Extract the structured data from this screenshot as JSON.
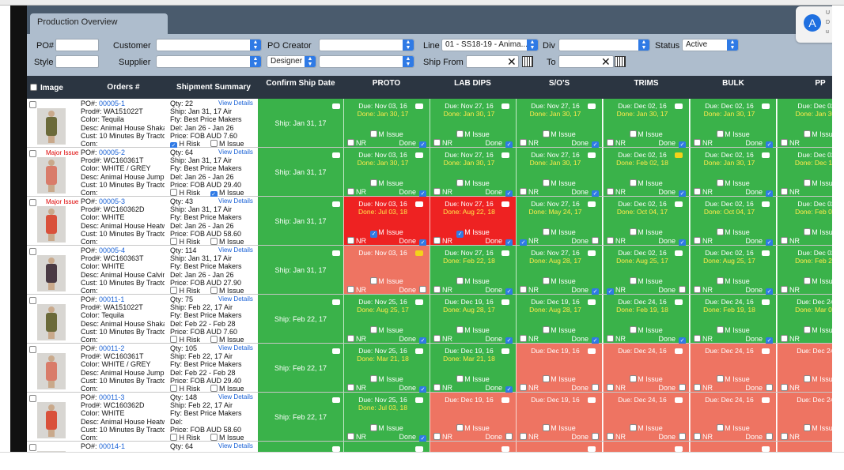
{
  "tab": {
    "label": "Production Overview"
  },
  "filters": {
    "po_label": "PO#",
    "customer_label": "Customer",
    "po_creator_label": "PO Creator",
    "line_label": "Line",
    "line_value": "01 - SS18-19 - Anima...",
    "div_label": "Div",
    "status_label": "Status",
    "status_value": "Active",
    "style_label": "Style",
    "supplier_label": "Supplier",
    "role_value": "Designer",
    "ship_from_label": "Ship From",
    "to_label": "To"
  },
  "app_icon": {
    "line1": "U",
    "line2": "D",
    "line3": "u"
  },
  "header": {
    "image": "Image",
    "orders": "Orders #",
    "shipment": "Shipment Summary",
    "confirm": "Confirm Ship Date",
    "proto": "PROTO",
    "lab_dips": "LAB DIPS",
    "sos": "S/O'S",
    "trims": "TRIMS",
    "bulk": "BULK",
    "pp": "PP"
  },
  "labels": {
    "view_details": "View Details",
    "h_risk": "H Risk",
    "m_issue": "M Issue",
    "nr": "NR",
    "done": "Done",
    "com": "Com:",
    "major_issue": "Major Issue"
  },
  "rows": [
    {
      "po": "PO#: ",
      "po_link": "00005-1",
      "prod": "Prod#: WA151022T",
      "color": "Color: Tequila",
      "desc": "Desc: Animal House Shaka",
      "cust": "Cust: 10 Minutes By Tracto",
      "com": "Com:",
      "qty": "Qty: 22",
      "ship": "Ship: Jan 31, 17 Air",
      "fty": "Fty: Best Price Makers",
      "del": "Del: Jan 26 - Jan 26",
      "price": "Price: FOB AUD 7.60",
      "h_risk": true,
      "m_issue": false,
      "major": false,
      "figure": "#6b6a3a",
      "confirm": "Ship: Jan 31, 17",
      "cells": [
        {
          "c": "g",
          "due": "Due: Nov 03, 16",
          "done": "Done: Jan 30, 17",
          "mi": false,
          "nr": false,
          "dn": true,
          "bubble": "w"
        },
        {
          "c": "g",
          "due": "Due: Nov 27, 16",
          "done": "Done: Jan 30, 17",
          "mi": false,
          "nr": false,
          "dn": true,
          "bubble": "w"
        },
        {
          "c": "g",
          "due": "Due: Nov 27, 16",
          "done": "Done: Jan 30, 17",
          "mi": false,
          "nr": false,
          "dn": true,
          "bubble": "w"
        },
        {
          "c": "g",
          "due": "Due: Dec 02, 16",
          "done": "Done: Jan 30, 17",
          "mi": false,
          "nr": false,
          "dn": true,
          "bubble": "w"
        },
        {
          "c": "g",
          "due": "Due: Dec 02, 16",
          "done": "Done: Jan 30, 17",
          "mi": false,
          "nr": false,
          "dn": true,
          "bubble": "w"
        },
        {
          "c": "g",
          "due": "Due: Dec 02",
          "done": "Done: Jan 30,",
          "mi": false,
          "nr": false,
          "dn": false,
          "bubble": "w"
        }
      ]
    },
    {
      "po": "PO#: ",
      "po_link": "00005-2",
      "prod": "Prod#: WC160361T",
      "color": "Color: WHITE / GREY",
      "desc": "Desc: Animal House Jump S",
      "cust": "Cust: 10 Minutes By Tracto",
      "com": "Com:",
      "qty": "Qty: 64",
      "ship": "Ship: Jan 31, 17 Air",
      "fty": "Fty: Best Price Makers",
      "del": "Del: Jan 26 - Jan 26",
      "price": "Price: FOB AUD 29.40",
      "h_risk": false,
      "m_issue": true,
      "major": true,
      "figure": "#d97c6a",
      "confirm": "Ship: Jan 31, 17",
      "cells": [
        {
          "c": "g",
          "due": "Due: Nov 03, 16",
          "done": "Done: Jan 30, 17",
          "mi": false,
          "nr": false,
          "dn": true,
          "bubble": "w"
        },
        {
          "c": "g",
          "due": "Due: Nov 27, 16",
          "done": "Done: Jan 30, 17",
          "mi": false,
          "nr": false,
          "dn": true,
          "bubble": "w"
        },
        {
          "c": "g",
          "due": "Due: Nov 27, 16",
          "done": "Done: Jan 30, 17",
          "mi": false,
          "nr": false,
          "dn": true,
          "bubble": "w"
        },
        {
          "c": "g",
          "due": "Due: Dec 02, 16",
          "done": "Done: Feb 02, 18",
          "mi": false,
          "nr": false,
          "dn": true,
          "bubble": "y"
        },
        {
          "c": "g",
          "due": "Due: Dec 02, 16",
          "done": "Done: Jan 30, 17",
          "mi": false,
          "nr": false,
          "dn": true,
          "bubble": "w"
        },
        {
          "c": "g",
          "due": "Due: Dec 02",
          "done": "Done: Dec 13,",
          "mi": false,
          "nr": false,
          "dn": false,
          "bubble": "w"
        }
      ]
    },
    {
      "po": "PO#: ",
      "po_link": "00005-3",
      "prod": "Prod#: WC160362D",
      "color": "Color: WHITE",
      "desc": "Desc: Animal House Heatw",
      "cust": "Cust: 10 Minutes By Tracto",
      "com": "Com:",
      "qty": "Qty: 43",
      "ship": "Ship: Jan 31, 17 Air",
      "fty": "Fty: Best Price Makers",
      "del": "Del: Jan 26 - Jan 26",
      "price": "Price: FOB AUD 58.60",
      "h_risk": false,
      "m_issue": false,
      "major": true,
      "figure": "#d9513b",
      "confirm": "Ship: Jan 31, 17",
      "cells": [
        {
          "c": "r",
          "due": "Due: Nov 03, 16",
          "done": "Done: Jul 03, 18",
          "mi": true,
          "nr": false,
          "dn": true,
          "bubble": "w"
        },
        {
          "c": "r",
          "due": "Due: Nov 27, 16",
          "done": "Done: Aug 22, 18",
          "mi": true,
          "nr": false,
          "dn": true,
          "bubble": "w"
        },
        {
          "c": "g",
          "due": "Due: Nov 27, 16",
          "done": "Done: May 24, 17",
          "mi": false,
          "nr": true,
          "dn": false,
          "bubble": "w"
        },
        {
          "c": "g",
          "due": "Due: Dec 02, 16",
          "done": "Done: Oct 04, 17",
          "mi": false,
          "nr": false,
          "dn": true,
          "bubble": "w"
        },
        {
          "c": "g",
          "due": "Due: Dec 02, 16",
          "done": "Done: Oct 04, 17",
          "mi": false,
          "nr": false,
          "dn": true,
          "bubble": "w"
        },
        {
          "c": "g",
          "due": "Due: Dec 02",
          "done": "Done: Feb 08,",
          "mi": false,
          "nr": false,
          "dn": false,
          "bubble": "w"
        }
      ]
    },
    {
      "po": "PO#: ",
      "po_link": "00005-4",
      "prod": "Prod#: WC160363T",
      "color": "Color: WHITE",
      "desc": "Desc: Animal House Calvin",
      "cust": "Cust: 10 Minutes By Tracto",
      "com": "Com:",
      "qty": "Qty: 114",
      "ship": "Ship: Jan 31, 17 Air",
      "fty": "Fty: Best Price Makers",
      "del": "Del: Jan 26 - Jan 26",
      "price": "Price: FOB AUD 27.90",
      "h_risk": false,
      "m_issue": false,
      "major": false,
      "figure": "#4a3a44",
      "confirm": "Ship: Jan 31, 17",
      "cells": [
        {
          "c": "s",
          "due": "Due: Nov 03, 16",
          "done": "",
          "mi": false,
          "nr": false,
          "dn": false,
          "bubble": "y"
        },
        {
          "c": "g",
          "due": "Due: Nov 27, 16",
          "done": "Done: Feb 22, 18",
          "mi": false,
          "nr": false,
          "dn": true,
          "bubble": "w"
        },
        {
          "c": "g",
          "due": "Due: Nov 27, 16",
          "done": "Done: Aug 28, 17",
          "mi": false,
          "nr": false,
          "dn": true,
          "bubble": "w"
        },
        {
          "c": "g",
          "due": "Due: Dec 02, 16",
          "done": "Done: Aug 25, 17",
          "mi": false,
          "nr": true,
          "dn": false,
          "bubble": "w"
        },
        {
          "c": "g",
          "due": "Due: Dec 02, 16",
          "done": "Done: Aug 25, 17",
          "mi": false,
          "nr": false,
          "dn": true,
          "bubble": "w"
        },
        {
          "c": "g",
          "due": "Due: Dec 02",
          "done": "Done: Feb 22,",
          "mi": false,
          "nr": false,
          "dn": false,
          "bubble": "w"
        }
      ]
    },
    {
      "po": "PO#: ",
      "po_link": "00011-1",
      "prod": "Prod#: WA151022T",
      "color": "Color: Tequila",
      "desc": "Desc: Animal House Shaka",
      "cust": "Cust: 10 Minutes By Tracto",
      "com": "Com:",
      "qty": "Qty: 75",
      "ship": "Ship: Feb 22, 17 Air",
      "fty": "Fty: Best Price Makers",
      "del": "Del: Feb 22 - Feb 28",
      "price": "Price: FOB AUD 7.60",
      "h_risk": false,
      "m_issue": false,
      "major": false,
      "figure": "#6b6a3a",
      "confirm": "Ship: Feb 22, 17",
      "cells": [
        {
          "c": "g",
          "due": "Due: Nov 25, 16",
          "done": "Done: Aug 25, 17",
          "mi": false,
          "nr": false,
          "dn": true,
          "bubble": "w"
        },
        {
          "c": "g",
          "due": "Due: Dec 19, 16",
          "done": "Done: Aug 28, 17",
          "mi": false,
          "nr": false,
          "dn": true,
          "bubble": "w"
        },
        {
          "c": "g",
          "due": "Due: Dec 19, 16",
          "done": "Done: Aug 28, 17",
          "mi": false,
          "nr": false,
          "dn": true,
          "bubble": "w"
        },
        {
          "c": "g",
          "due": "Due: Dec 24, 16",
          "done": "Done: Feb 19, 18",
          "mi": false,
          "nr": false,
          "dn": true,
          "bubble": "w"
        },
        {
          "c": "g",
          "due": "Due: Dec 24, 16",
          "done": "Done: Feb 19, 18",
          "mi": false,
          "nr": false,
          "dn": true,
          "bubble": "w"
        },
        {
          "c": "g",
          "due": "Due: Dec 24,",
          "done": "Done: Mar 09,",
          "mi": false,
          "nr": false,
          "dn": false,
          "bubble": "w"
        }
      ]
    },
    {
      "po": "PO#: ",
      "po_link": "00011-2",
      "prod": "Prod#: WC160361T",
      "color": "Color: WHITE / GREY",
      "desc": "Desc: Animal House Jump S",
      "cust": "Cust: 10 Minutes By Tracto",
      "com": "Com:",
      "qty": "Qty: 105",
      "ship": "Ship: Feb 22, 17 Air",
      "fty": "Fty: Best Price Makers",
      "del": "Del: Feb 22 - Feb 28",
      "price": "Price: FOB AUD 29.40",
      "h_risk": false,
      "m_issue": false,
      "major": false,
      "figure": "#d97c6a",
      "confirm": "Ship: Feb 22, 17",
      "cells": [
        {
          "c": "g",
          "due": "Due: Nov 25, 16",
          "done": "Done: Mar 21, 18",
          "mi": false,
          "nr": false,
          "dn": true,
          "bubble": "w"
        },
        {
          "c": "g",
          "due": "Due: Dec 19, 16",
          "done": "Done: Mar 21, 18",
          "mi": false,
          "nr": false,
          "dn": true,
          "bubble": "w"
        },
        {
          "c": "s",
          "due": "Due: Dec 19, 16",
          "done": "",
          "mi": false,
          "nr": false,
          "dn": false,
          "bubble": "w"
        },
        {
          "c": "s",
          "due": "Due: Dec 24, 16",
          "done": "",
          "mi": false,
          "nr": false,
          "dn": false,
          "bubble": "w"
        },
        {
          "c": "s",
          "due": "Due: Dec 24, 16",
          "done": "",
          "mi": false,
          "nr": false,
          "dn": false,
          "bubble": "w"
        },
        {
          "c": "s",
          "due": "Due: Dec 24,",
          "done": "",
          "mi": false,
          "nr": false,
          "dn": false,
          "bubble": "w"
        }
      ]
    },
    {
      "po": "PO#: ",
      "po_link": "00011-3",
      "prod": "Prod#: WC160362D",
      "color": "Color: WHITE",
      "desc": "Desc: Animal House Heatw",
      "cust": "Cust: 10 Minutes By Tracto",
      "com": "Com:",
      "qty": "Qty: 148",
      "ship": "Ship: Feb 22, 17 Air",
      "fty": "Fty: Best Price Makers",
      "del": "Del:",
      "price": "Price: FOB AUD 58.60",
      "h_risk": false,
      "m_issue": false,
      "major": false,
      "figure": "#d9513b",
      "confirm": "Ship: Feb 22, 17",
      "cells": [
        {
          "c": "g",
          "due": "Due: Nov 25, 16",
          "done": "Done: Jul 03, 18",
          "mi": false,
          "nr": false,
          "dn": true,
          "bubble": "w"
        },
        {
          "c": "s",
          "due": "Due: Dec 19, 16",
          "done": "",
          "mi": false,
          "nr": false,
          "dn": false,
          "bubble": "w"
        },
        {
          "c": "s",
          "due": "Due: Dec 19, 16",
          "done": "",
          "mi": false,
          "nr": false,
          "dn": false,
          "bubble": "w"
        },
        {
          "c": "s",
          "due": "Due: Dec 24, 16",
          "done": "",
          "mi": false,
          "nr": false,
          "dn": false,
          "bubble": "w"
        },
        {
          "c": "s",
          "due": "Due: Dec 24, 16",
          "done": "",
          "mi": false,
          "nr": false,
          "dn": false,
          "bubble": "w"
        },
        {
          "c": "s",
          "due": "Due: Dec 24,",
          "done": "",
          "mi": false,
          "nr": false,
          "dn": false,
          "bubble": "w"
        }
      ]
    },
    {
      "po": "PO#: ",
      "po_link": "00014-1",
      "prod": "",
      "color": "",
      "desc": "",
      "cust": "",
      "com": "",
      "qty": "Qty: 64",
      "ship": "",
      "fty": "",
      "del": "",
      "price": "",
      "h_risk": false,
      "m_issue": false,
      "major": false,
      "figure": "#d8d6d2",
      "confirm": "",
      "cells": [
        {
          "c": "g",
          "due": "",
          "done": "",
          "mi": false,
          "nr": false,
          "dn": false,
          "bubble": "w"
        },
        {
          "c": "s",
          "due": "",
          "done": "",
          "mi": false,
          "nr": false,
          "dn": false,
          "bubble": "w"
        },
        {
          "c": "s",
          "due": "",
          "done": "",
          "mi": false,
          "nr": false,
          "dn": false,
          "bubble": "w"
        },
        {
          "c": "s",
          "due": "",
          "done": "",
          "mi": false,
          "nr": false,
          "dn": false,
          "bubble": "w"
        },
        {
          "c": "s",
          "due": "",
          "done": "",
          "mi": false,
          "nr": false,
          "dn": false,
          "bubble": "w"
        },
        {
          "c": "s",
          "due": "",
          "done": "",
          "mi": false,
          "nr": false,
          "dn": false,
          "bubble": "w"
        }
      ]
    }
  ]
}
